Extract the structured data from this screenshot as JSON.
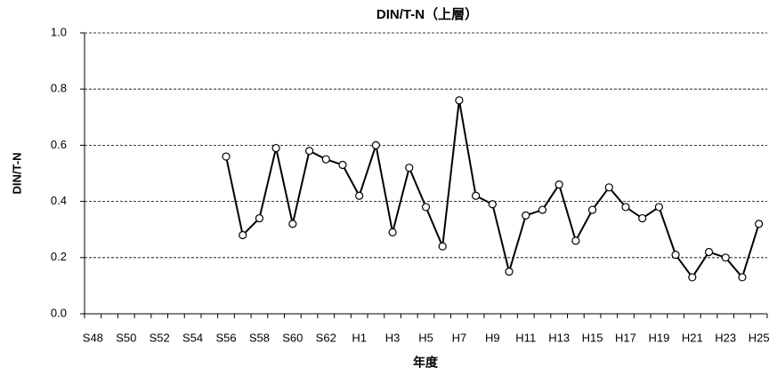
{
  "chart_data": {
    "type": "line",
    "title": "DIN/T-N（上層）",
    "x_label": "年度",
    "y_label": "DIN/T-N",
    "categories": [
      "S48",
      null,
      "S50",
      null,
      "S52",
      null,
      "S54",
      null,
      "S56",
      null,
      "S58",
      null,
      "S60",
      null,
      "S62",
      null,
      "H1",
      null,
      "H3",
      null,
      "H5",
      null,
      "H7",
      null,
      "H9",
      null,
      "H11",
      null,
      "H13",
      null,
      "H15",
      null,
      "H17",
      null,
      "H19",
      null,
      "H21",
      null,
      "H23",
      null,
      "H25"
    ],
    "series": [
      {
        "color": "#000000",
        "values": [
          null,
          null,
          null,
          null,
          null,
          null,
          null,
          null,
          0.56,
          0.28,
          0.34,
          0.59,
          0.32,
          0.58,
          0.55,
          0.53,
          0.42,
          0.6,
          0.29,
          0.52,
          0.38,
          0.24,
          0.76,
          0.42,
          0.39,
          0.15,
          0.35,
          0.37,
          0.46,
          0.26,
          0.37,
          0.45,
          0.38,
          0.34,
          0.38,
          0.21,
          0.13,
          0.22,
          0.2,
          0.13,
          0.32
        ]
      }
    ],
    "ylim": [
      0,
      1.0
    ],
    "yticks": [
      {
        "value": 0,
        "label": "0.0"
      },
      {
        "value": 0.2,
        "label": "0.2"
      },
      {
        "value": 0.4,
        "label": "0.4"
      },
      {
        "value": 0.6,
        "label": "0.6"
      },
      {
        "value": 0.8,
        "label": "0.8"
      },
      {
        "value": 1.0,
        "label": "1.0"
      }
    ],
    "grid": true
  }
}
